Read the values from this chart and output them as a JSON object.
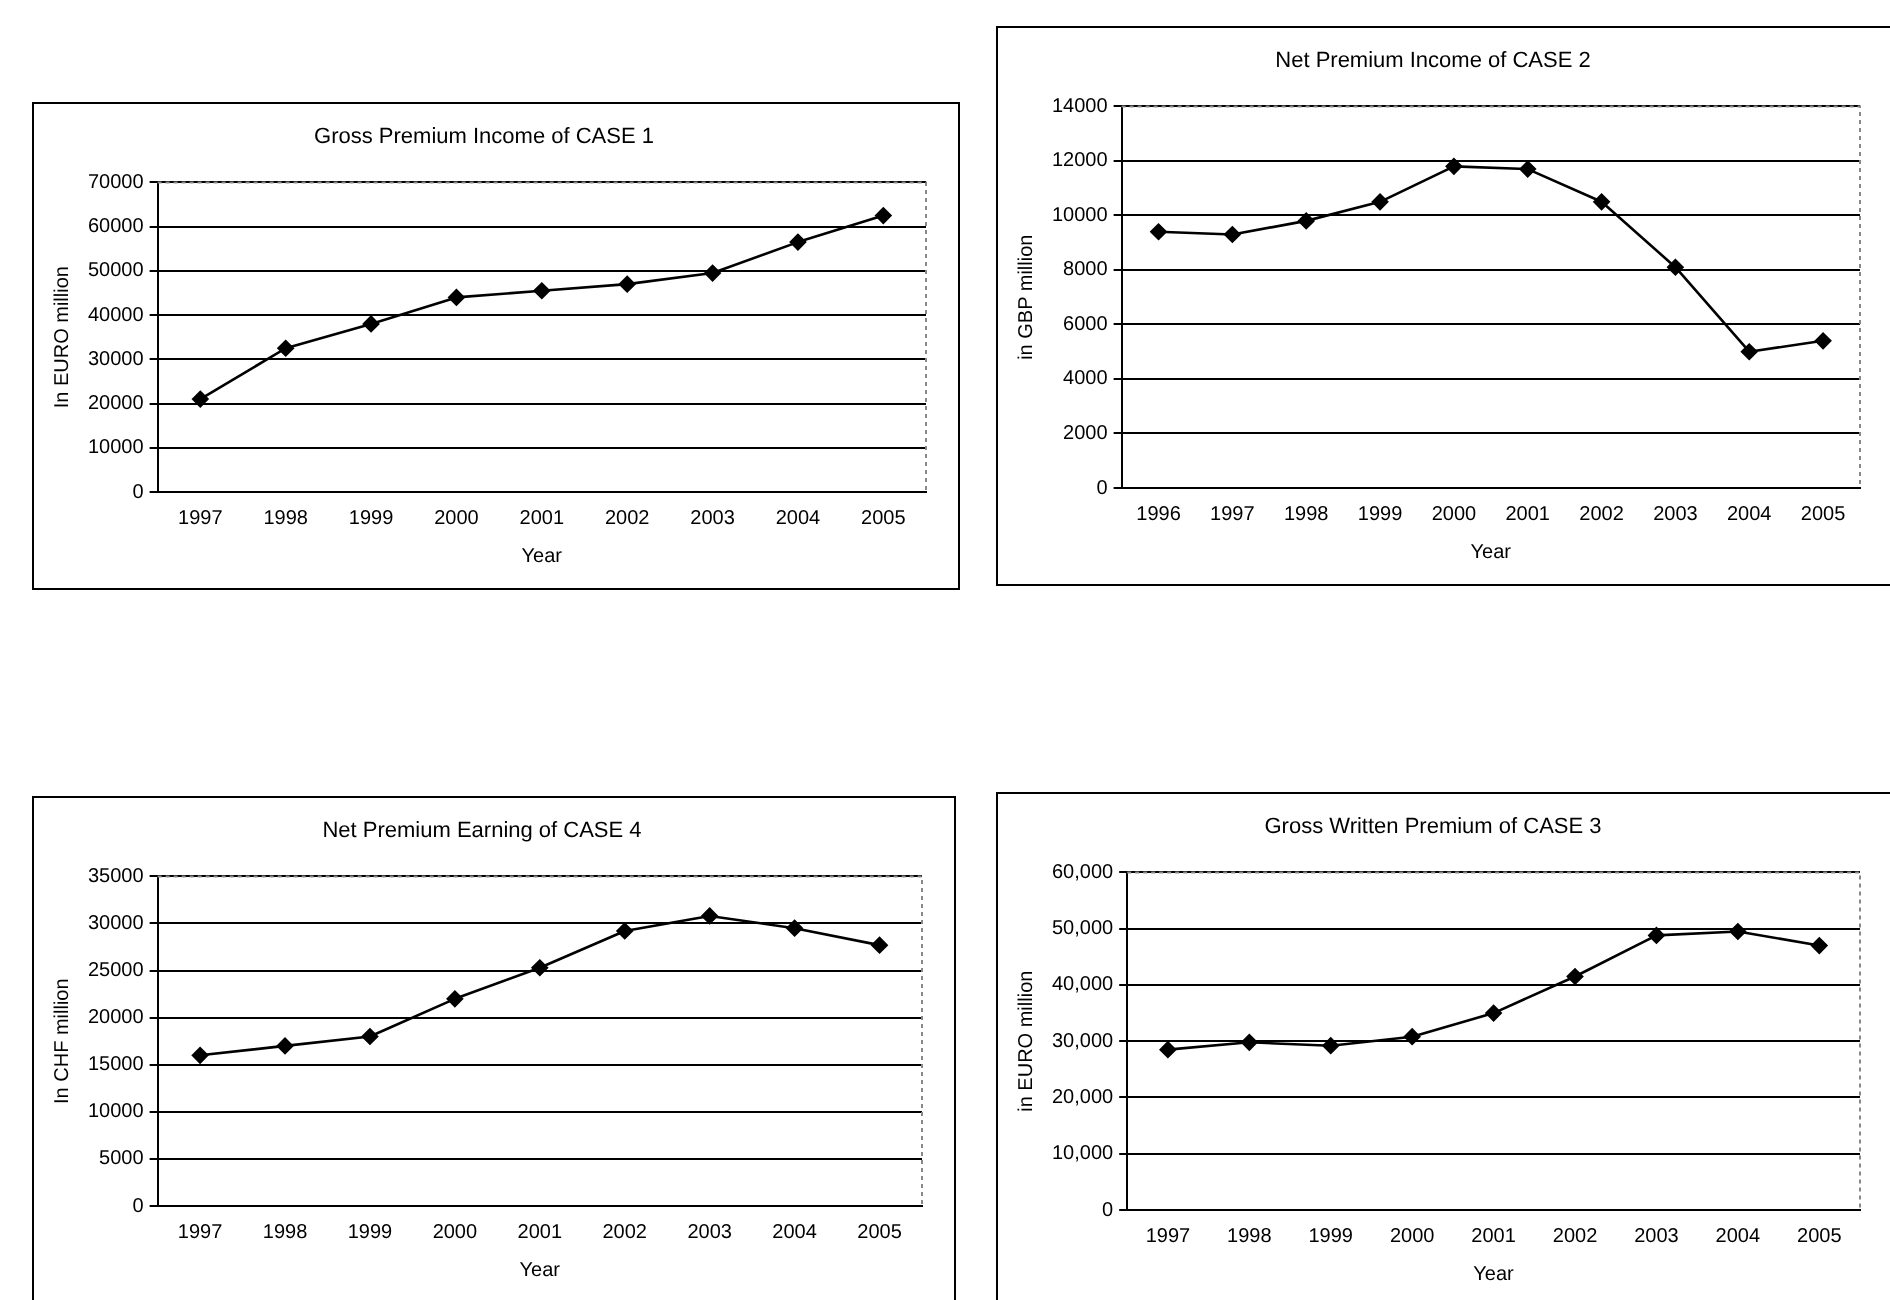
{
  "chart_data": [
    {
      "type": "line",
      "title": "Gross Premium Income of CASE 1",
      "xlabel": "Year",
      "ylabel": "In EURO million",
      "categories": [
        "1997",
        "1998",
        "1999",
        "2000",
        "2001",
        "2002",
        "2003",
        "2004",
        "2005"
      ],
      "series": [
        {
          "color": "#000000",
          "values": [
            21000,
            32500,
            38000,
            44000,
            45500,
            47000,
            49500,
            56500,
            62500
          ]
        }
      ],
      "ylim": [
        0,
        70000
      ],
      "yticks": [
        0,
        10000,
        20000,
        30000,
        40000,
        50000,
        60000,
        70000
      ],
      "grid": "y",
      "marker": "diamond",
      "line_style": "solid"
    },
    {
      "type": "line",
      "title": "Net Premium Income of CASE 2",
      "xlabel": "Year",
      "ylabel": "in GBP million",
      "categories": [
        "1996",
        "1997",
        "1998",
        "1999",
        "2000",
        "2001",
        "2002",
        "2003",
        "2004",
        "2005"
      ],
      "series": [
        {
          "color": "#000000",
          "values": [
            9400,
            9300,
            9800,
            10500,
            11800,
            11700,
            10500,
            8100,
            5000,
            5400
          ]
        }
      ],
      "ylim": [
        0,
        14000
      ],
      "yticks": [
        0,
        2000,
        4000,
        6000,
        8000,
        10000,
        12000,
        14000
      ],
      "grid": "y",
      "marker": "diamond",
      "line_style": "solid"
    },
    {
      "type": "line",
      "title": "Net Premium Earning of CASE 4",
      "xlabel": "Year",
      "ylabel": "In CHF million",
      "categories": [
        "1997",
        "1998",
        "1999",
        "2000",
        "2001",
        "2002",
        "2003",
        "2004",
        "2005"
      ],
      "series": [
        {
          "color": "#000000",
          "values": [
            16000,
            17000,
            18000,
            22000,
            25300,
            29200,
            30800,
            29500,
            27700
          ]
        }
      ],
      "ylim": [
        0,
        35000
      ],
      "yticks": [
        0,
        5000,
        10000,
        15000,
        20000,
        25000,
        30000,
        35000
      ],
      "grid": "y",
      "marker": "diamond",
      "line_style": "solid"
    },
    {
      "type": "line",
      "title": "Gross Written Premium of CASE 3",
      "xlabel": "Year",
      "ylabel": "in EURO million",
      "categories": [
        "1997",
        "1998",
        "1999",
        "2000",
        "2001",
        "2002",
        "2003",
        "2004",
        "2005"
      ],
      "series": [
        {
          "color": "#000000",
          "values": [
            28500,
            29800,
            29200,
            30800,
            35000,
            41500,
            48800,
            49500,
            47000
          ]
        }
      ],
      "ylim": [
        0,
        60000
      ],
      "yticks": [
        0,
        {
          "value": 10000,
          "label": "10,000"
        },
        {
          "value": 20000,
          "label": "20,000"
        },
        {
          "value": 30000,
          "label": "30,000"
        },
        {
          "value": 40000,
          "label": "40,000"
        },
        {
          "value": 50000,
          "label": "50,000"
        },
        {
          "value": 60000,
          "label": "60,000"
        }
      ],
      "grid": "y",
      "marker": "diamond",
      "line_style": "solid"
    }
  ]
}
